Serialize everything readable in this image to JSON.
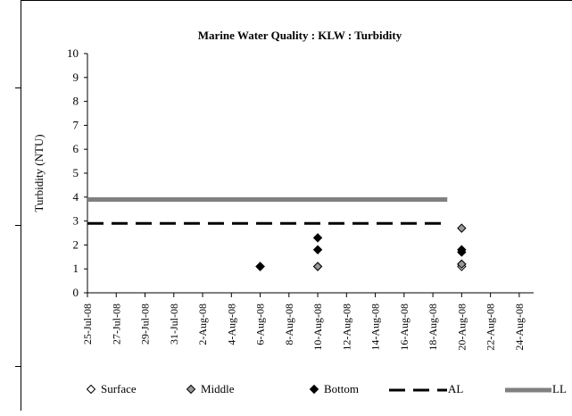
{
  "chart_data": {
    "type": "scatter",
    "title": "Marine Water Quality : KLW : Turbidity",
    "xlabel": "",
    "ylabel": "Turbidity (NTU)",
    "ylim": [
      0,
      10
    ],
    "yticks": [
      "0",
      "1",
      "2",
      "3",
      "4",
      "5",
      "6",
      "7",
      "8",
      "9",
      "10"
    ],
    "xlim": [
      "2008-07-25",
      "2008-08-25"
    ],
    "xticks": [
      "25-Jul-08",
      "27-Jul-08",
      "29-Jul-08",
      "31-Jul-08",
      "2-Aug-08",
      "4-Aug-08",
      "6-Aug-08",
      "8-Aug-08",
      "10-Aug-08",
      "12-Aug-08",
      "14-Aug-08",
      "16-Aug-08",
      "18-Aug-08",
      "20-Aug-08",
      "22-Aug-08",
      "24-Aug-08"
    ],
    "grid": false,
    "legend_position": "bottom",
    "series": [
      {
        "name": "Surface",
        "marker": "open-diamond",
        "color": "#ffffff",
        "points": [
          {
            "x": "2008-08-06",
            "y": 1.1
          },
          {
            "x": "2008-08-10",
            "y": 1.1
          },
          {
            "x": "2008-08-20",
            "y": 1.1
          },
          {
            "x": "2008-08-20",
            "y": 1.2
          }
        ]
      },
      {
        "name": "Middle",
        "marker": "gray-diamond",
        "color": "#999999",
        "points": [
          {
            "x": "2008-08-06",
            "y": 1.1
          },
          {
            "x": "2008-08-10",
            "y": 1.1
          },
          {
            "x": "2008-08-20",
            "y": 1.2
          },
          {
            "x": "2008-08-20",
            "y": 2.7
          }
        ]
      },
      {
        "name": "Bottom",
        "marker": "black-diamond",
        "color": "#000000",
        "points": [
          {
            "x": "2008-08-06",
            "y": 1.1
          },
          {
            "x": "2008-08-10",
            "y": 1.8
          },
          {
            "x": "2008-08-10",
            "y": 2.3
          },
          {
            "x": "2008-08-20",
            "y": 1.7
          },
          {
            "x": "2008-08-20",
            "y": 1.8
          }
        ]
      },
      {
        "name": "AL",
        "type": "line",
        "style": "dashed",
        "color": "#000000",
        "points": [
          {
            "x": "2008-07-25",
            "y": 2.9
          },
          {
            "x": "2008-08-19",
            "y": 2.9
          }
        ]
      },
      {
        "name": "LL",
        "type": "line",
        "style": "solid",
        "color": "#808080",
        "points": [
          {
            "x": "2008-07-25",
            "y": 3.9
          },
          {
            "x": "2008-08-19",
            "y": 3.9
          }
        ]
      }
    ]
  }
}
